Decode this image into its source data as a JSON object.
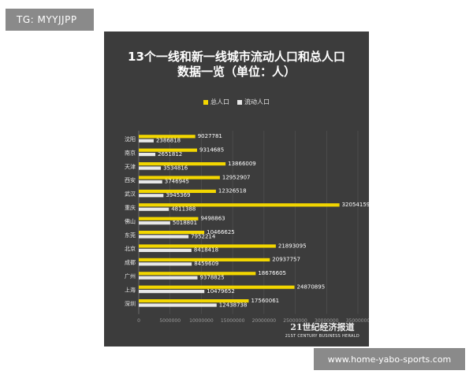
{
  "watermark_tag": "TG: MYYJJPP",
  "footer_url": "www.home-yabo-sports.com",
  "brand": {
    "name_cn": "21世纪经济报道",
    "name_en": "21ST CENTURY BUSINESS HERALD"
  },
  "colors": {
    "panel_bg": "#3c3c3c",
    "total": "#f2d600",
    "floating": "#e8e8e8",
    "tag_bg": "#8a8a8a"
  },
  "chart_data": {
    "type": "bar",
    "orientation": "horizontal",
    "title": "13个一线和新一线城市流动人口和总人口数据一览（单位：人）",
    "title_lines": [
      "13个一线和新一线城市流动人口和总人口",
      "数据一览（单位：人）"
    ],
    "categories": [
      "沈阳",
      "南京",
      "天津",
      "西安",
      "武汉",
      "重庆",
      "佛山",
      "东莞",
      "北京",
      "成都",
      "广州",
      "上海",
      "深圳"
    ],
    "series": [
      {
        "name": "总人口",
        "color": "#f2d600",
        "values": [
          9027781,
          9314685,
          13866009,
          12952907,
          12326518,
          32054159,
          9498863,
          10466625,
          21893095,
          20937757,
          18676605,
          24870895,
          17560061
        ]
      },
      {
        "name": "流动人口",
        "color": "#e8e8e8",
        "values": [
          2386818,
          2651812,
          3534816,
          3746945,
          3945369,
          4811388,
          5018801,
          7952214,
          8418418,
          8459609,
          9378825,
          10479652,
          12438738
        ]
      }
    ],
    "xlim": [
      0,
      35000000
    ],
    "x_ticks": [
      "0",
      "5000000",
      "10000000",
      "15000000",
      "20000000",
      "25000000",
      "30000000",
      "35000000"
    ],
    "legend_position": "top-center",
    "grid": true
  }
}
